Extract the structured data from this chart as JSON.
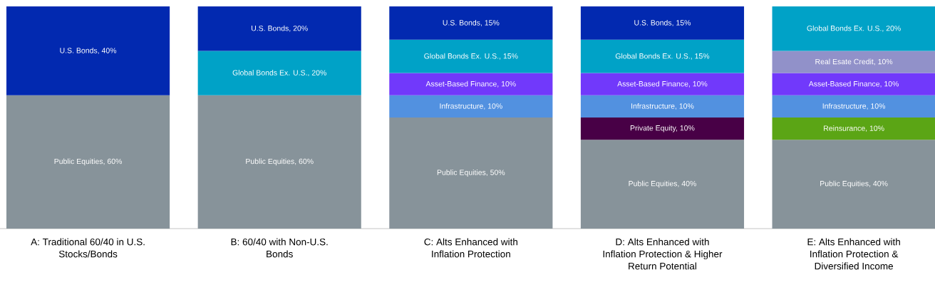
{
  "chart_data": {
    "type": "bar",
    "stacked": true,
    "ylim": [
      0,
      100
    ],
    "tick_labels": "x",
    "categories": [
      "A: Traditional 60/40 in U.S. Stocks/Bonds",
      "B: 60/40 with Non-U.S. Bonds",
      "C: Alts Enhanced with Inflation Protection",
      "D: Alts Enhanced with Inflation Protection & Higher Return Potential",
      "E: Alts Enhanced with Inflation Protection & Diversified Income"
    ],
    "series": [
      {
        "color": "#87939a",
        "values": [
          60,
          60,
          50,
          40,
          40
        ],
        "value_labels": [
          "Public Equities, 60%",
          "Public Equities, 60%",
          "Public Equities, 50%",
          "Public Equities, 40%",
          "Public Equities, 40%"
        ]
      },
      {
        "color": "#480046",
        "values": [
          null,
          null,
          null,
          10,
          null
        ],
        "value_labels": [
          null,
          null,
          null,
          "Private Equity, 10%",
          null
        ]
      },
      {
        "color": "#5ba515",
        "values": [
          null,
          null,
          null,
          null,
          10
        ],
        "value_labels": [
          null,
          null,
          null,
          null,
          "Reinsurance, 10%"
        ]
      },
      {
        "color": "#5291e0",
        "values": [
          null,
          null,
          10,
          10,
          10
        ],
        "value_labels": [
          null,
          null,
          "Infrastructure, 10%",
          "Infrastructure, 10%",
          "Infrastructure, 10%"
        ]
      },
      {
        "color": "#7139fb",
        "values": [
          null,
          null,
          10,
          10,
          10
        ],
        "value_labels": [
          null,
          null,
          "Asset-Based Finance, 10%",
          "Asset-Based Finance, 10%",
          "Asset-Based Finance, 10%"
        ]
      },
      {
        "color": "#9191c9",
        "values": [
          null,
          null,
          null,
          null,
          10
        ],
        "value_labels": [
          null,
          null,
          null,
          null,
          "Real Esate Credit, 10%"
        ]
      },
      {
        "color": "#00a2c7",
        "values": [
          null,
          20,
          15,
          15,
          20
        ],
        "value_labels": [
          null,
          "Global Bonds Ex. U.S., 20%",
          "Global Bonds Ex. U.S., 15%",
          "Global Bonds Ex. U.S., 15%",
          "Global Bonds Ex. U.S., 20%"
        ]
      },
      {
        "color": "#0229b0",
        "values": [
          40,
          20,
          15,
          15,
          null
        ],
        "value_labels": [
          "U.S. Bonds, 40%",
          "U.S. Bonds, 20%",
          "U.S. Bonds, 15%",
          "U.S. Bonds, 15%",
          null
        ]
      }
    ]
  }
}
